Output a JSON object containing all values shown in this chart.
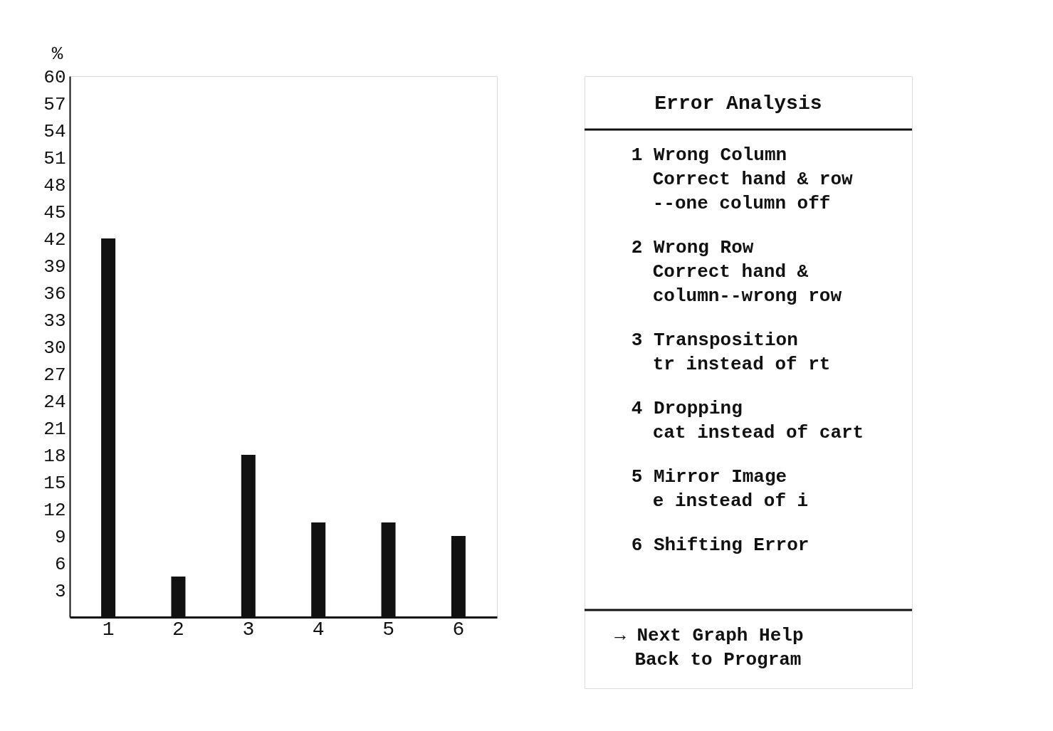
{
  "chart_data": {
    "type": "bar",
    "title": "Error Analysis",
    "ylabel": "%",
    "categories": [
      "1",
      "2",
      "3",
      "4",
      "5",
      "6"
    ],
    "values": [
      42,
      4.5,
      18,
      10.5,
      10.5,
      9
    ],
    "color": "#111111",
    "ylim": [
      0,
      60
    ],
    "yticks": [
      3,
      6,
      9,
      12,
      15,
      18,
      21,
      24,
      27,
      30,
      33,
      36,
      39,
      42,
      45,
      48,
      51,
      54,
      57,
      60
    ],
    "grid": false,
    "annotations": [
      "1 Wrong Column\nCorrect hand & row\n--one column off",
      "2 Wrong Row\nCorrect hand &\ncolumn--wrong row",
      "3 Transposition\ntr instead of rt",
      "4 Dropping\ncat instead of cart",
      "5 Mirror Image\ne instead of i",
      "6 Shifting Error",
      "→ Next Graph   Help\nBack to Program"
    ]
  }
}
